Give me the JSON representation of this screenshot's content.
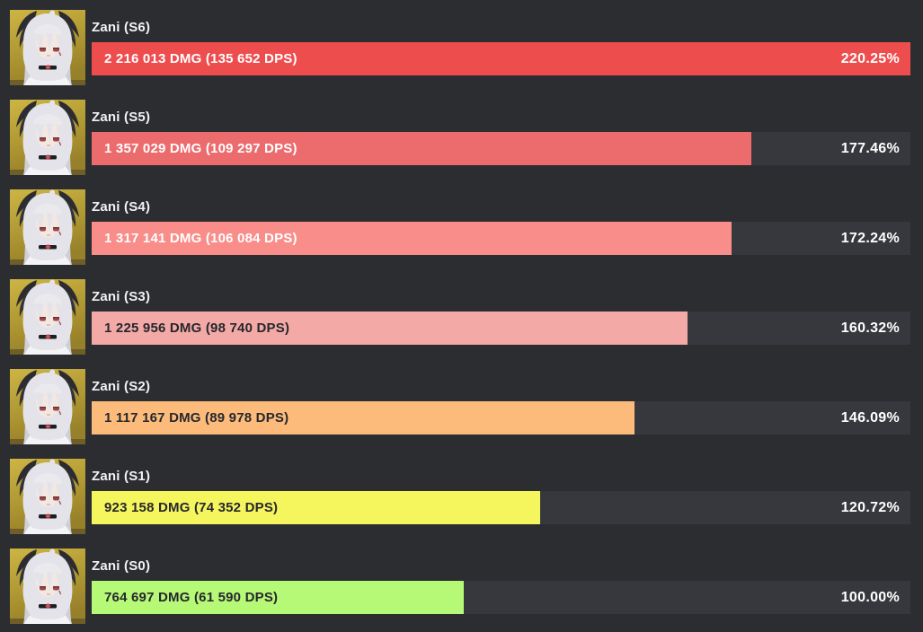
{
  "colors": {
    "background": "#2b2d31",
    "track": "#36383d",
    "label": "#f1f2f4",
    "percent": "#ffffff"
  },
  "avatar_alt": "zani-character-portrait",
  "chart_data": {
    "type": "bar",
    "orientation": "horizontal",
    "title": "",
    "xlabel": "",
    "ylabel": "",
    "baseline_percent": 100.0,
    "max_percent": 220.25,
    "categories": [
      "Zani (S6)",
      "Zani (S5)",
      "Zani (S4)",
      "Zani (S3)",
      "Zani (S2)",
      "Zani (S1)",
      "Zani (S0)"
    ],
    "rows": [
      {
        "label": "Zani (S6)",
        "dmg": 2216013,
        "dps": 135652,
        "percent": 220.25,
        "value_label": "2 216 013 DMG (135 652 DPS)",
        "percent_label": "220.25%",
        "bar_color": "#ee4d4e",
        "text_color": "#ffffff"
      },
      {
        "label": "Zani (S5)",
        "dmg": 1357029,
        "dps": 109297,
        "percent": 177.46,
        "value_label": "1 357 029 DMG (109 297 DPS)",
        "percent_label": "177.46%",
        "bar_color": "#ec6b6c",
        "text_color": "#ffffff"
      },
      {
        "label": "Zani (S4)",
        "dmg": 1317141,
        "dps": 106084,
        "percent": 172.24,
        "value_label": "1 317 141 DMG (106 084 DPS)",
        "percent_label": "172.24%",
        "bar_color": "#f88d89",
        "text_color": "#ffffff"
      },
      {
        "label": "Zani (S3)",
        "dmg": 1225956,
        "dps": 98740,
        "percent": 160.32,
        "value_label": "1 225 956 DMG (98 740 DPS)",
        "percent_label": "160.32%",
        "bar_color": "#f3aaa7",
        "text_color": "#26272c"
      },
      {
        "label": "Zani (S2)",
        "dmg": 1117167,
        "dps": 89978,
        "percent": 146.09,
        "value_label": "1 117 167 DMG (89 978 DPS)",
        "percent_label": "146.09%",
        "bar_color": "#fcbb7a",
        "text_color": "#26272c"
      },
      {
        "label": "Zani (S1)",
        "dmg": 923158,
        "dps": 74352,
        "percent": 120.72,
        "value_label": "923 158 DMG (74 352 DPS)",
        "percent_label": "120.72%",
        "bar_color": "#f5f55e",
        "text_color": "#26272c"
      },
      {
        "label": "Zani (S0)",
        "dmg": 764697,
        "dps": 61590,
        "percent": 100.0,
        "value_label": "764 697 DMG (61 590 DPS)",
        "percent_label": "100.00%",
        "bar_color": "#b6f977",
        "text_color": "#26272c"
      }
    ]
  }
}
